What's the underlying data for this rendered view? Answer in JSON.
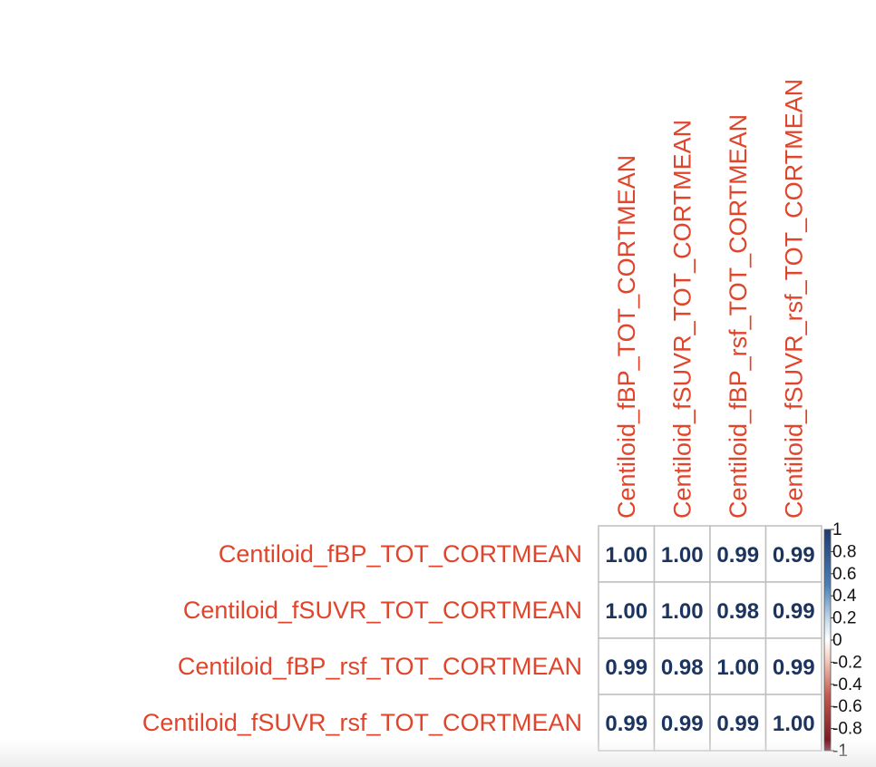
{
  "chart_data": {
    "type": "heatmap",
    "variables": [
      "Centiloid_fBP_TOT_CORTMEAN",
      "Centiloid_fSUVR_TOT_CORTMEAN",
      "Centiloid_fBP_rsf_TOT_CORTMEAN",
      "Centiloid_fSUVR_rsf_TOT_CORTMEAN"
    ],
    "matrix": [
      [
        1.0,
        1.0,
        0.99,
        0.99
      ],
      [
        1.0,
        1.0,
        0.98,
        0.99
      ],
      [
        0.99,
        0.98,
        1.0,
        0.99
      ],
      [
        0.99,
        0.99,
        0.99,
        1.0
      ]
    ],
    "cell_text": [
      [
        "1.00",
        "1.00",
        "0.99",
        "0.99"
      ],
      [
        "1.00",
        "1.00",
        "0.98",
        "0.99"
      ],
      [
        "0.99",
        "0.98",
        "1.00",
        "0.99"
      ],
      [
        "0.99",
        "0.99",
        "0.99",
        "1.00"
      ]
    ],
    "colorbar": {
      "range": [
        -1,
        1
      ],
      "tick_labels": [
        "1",
        "0.8",
        "0.6",
        "0.4",
        "0.2",
        "0",
        "-0.2",
        "-0.4",
        "-0.6",
        "-0.8",
        "-1"
      ],
      "tick_values": [
        1,
        0.8,
        0.6,
        0.4,
        0.2,
        0,
        -0.2,
        -0.4,
        -0.6,
        -0.8,
        -1
      ],
      "placement": "right"
    },
    "colors": {
      "label_color": "#e0452b",
      "value_color": "#1c3560",
      "grid_color": "#bfbfbf",
      "scale_high": "#1f3a6e",
      "scale_mid": "#ffffff",
      "scale_low": "#6b0c1c"
    }
  }
}
